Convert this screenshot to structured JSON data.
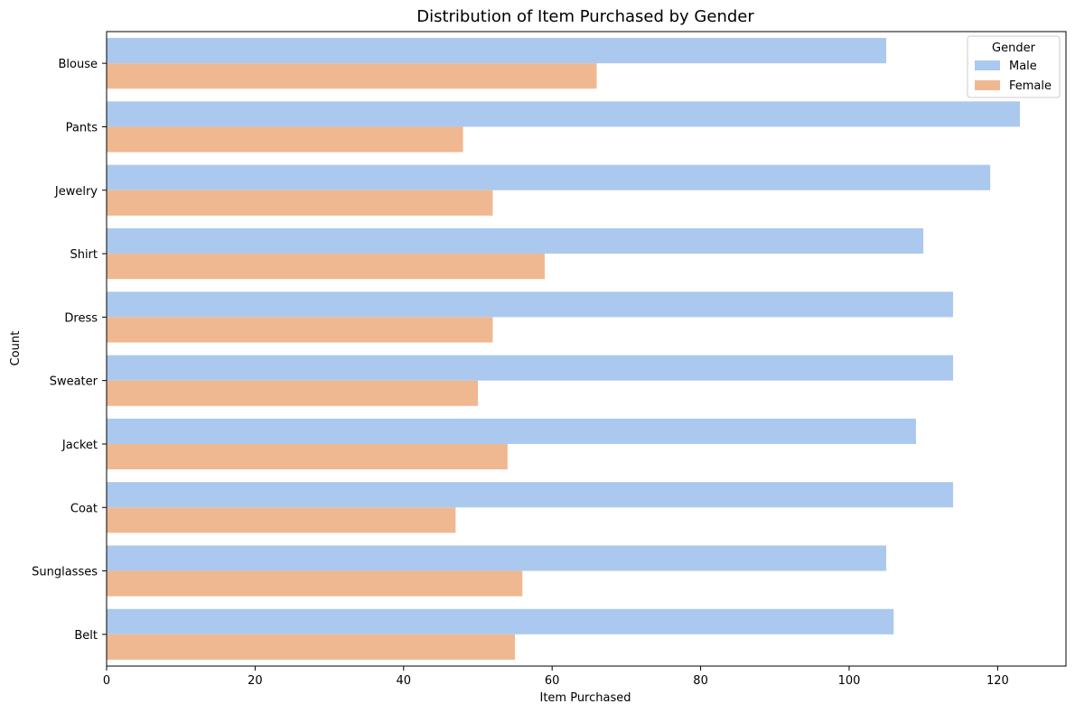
{
  "chart_data": {
    "type": "bar",
    "orientation": "horizontal",
    "title": "Distribution of Item Purchased by Gender",
    "xlabel": "Item Purchased",
    "ylabel": "Count",
    "categories": [
      "Blouse",
      "Pants",
      "Jewelry",
      "Shirt",
      "Dress",
      "Sweater",
      "Jacket",
      "Coat",
      "Sunglasses",
      "Belt"
    ],
    "series": [
      {
        "name": "Male",
        "color": "#abc9ee",
        "values": [
          105,
          123,
          119,
          110,
          114,
          114,
          109,
          114,
          105,
          106
        ]
      },
      {
        "name": "Female",
        "color": "#f0b890",
        "values": [
          66,
          48,
          52,
          59,
          52,
          50,
          54,
          47,
          56,
          55
        ]
      }
    ],
    "xlim": [
      0,
      129.2
    ],
    "xticks": [
      0,
      20,
      40,
      60,
      80,
      100,
      120
    ],
    "grid": false,
    "legend": {
      "title": "Gender",
      "position": "top-right"
    }
  }
}
